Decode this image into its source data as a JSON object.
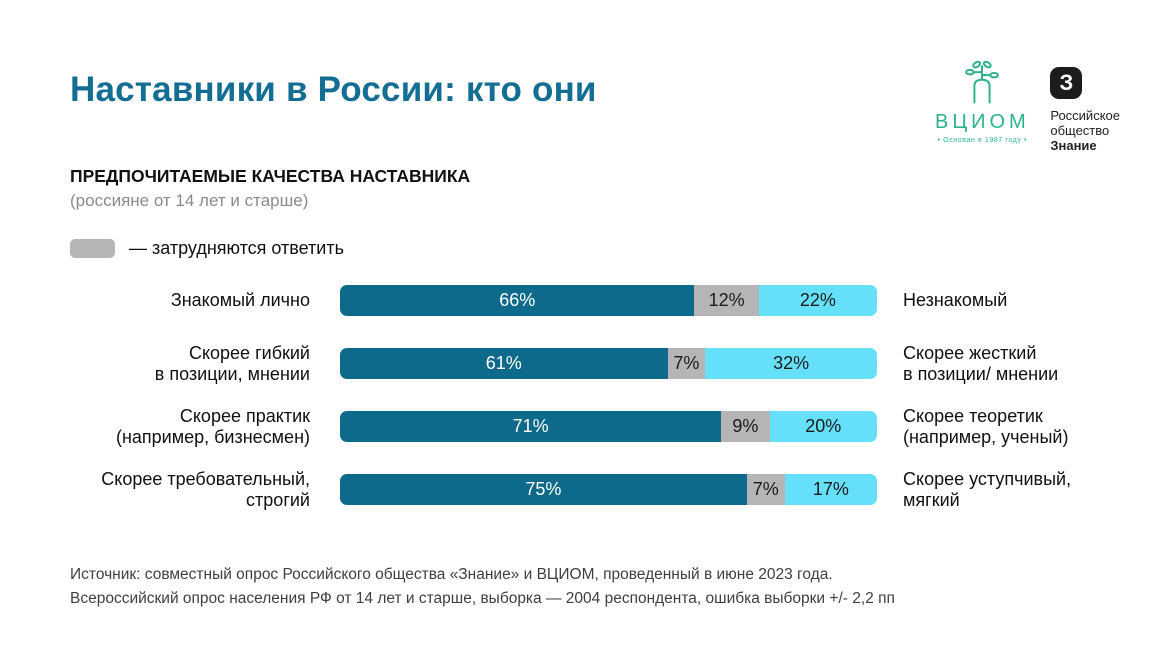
{
  "page": {
    "title": "Наставники в России: кто они"
  },
  "logos": {
    "vciom": {
      "name": "ВЦИОМ",
      "tagline": "• Основан в 1987 году •",
      "brand_color": "#2eb28e"
    },
    "znanie": {
      "glyph": "З",
      "line1": "Российское",
      "line2": "общество",
      "line3": "Знание"
    }
  },
  "section": {
    "heading": "ПРЕДПОЧИТАЕМЫЕ КАЧЕСТВА НАСТАВНИКА",
    "subheading": "(россияне от 14 лет и старше)"
  },
  "legend": {
    "label": "— затрудняются ответить",
    "swatch_color": "#b5b5b7"
  },
  "chart_data": {
    "type": "bar",
    "variant": "horizontal-stacked-opposing-qualities",
    "unit": "%",
    "title": "ПРЕДПОЧИТАЕМЫЕ КАЧЕСТВА НАСТАВНИКА",
    "subtitle": "(россияне от 14 лет и старше)",
    "series_names": [
      "качество слева",
      "затрудняются ответить",
      "качество справа"
    ],
    "colors": {
      "left": "#0d6a8a",
      "neutral": "#b5b5b7",
      "right": "#66e0fa",
      "label_on_left": "#ffffff",
      "label_on_other": "#1a1a1a"
    },
    "rows": [
      {
        "left_label": "Знакомый лично",
        "right_label": "Незнакомый",
        "values": [
          66,
          12,
          22
        ]
      },
      {
        "left_label": "Скорее гибкий\nв позиции, мнении",
        "right_label": "Скорее жесткий\nв позиции/ мнении",
        "values": [
          61,
          7,
          32
        ]
      },
      {
        "left_label": "Скорее практик\n(например, бизнесмен)",
        "right_label": "Скорее теоретик\n(например, ученый)",
        "values": [
          71,
          9,
          20
        ]
      },
      {
        "left_label": "Скорее требовательный,\nстрогий",
        "right_label": "Скорее уступчивый,\nмягкий",
        "values": [
          75,
          7,
          17
        ]
      }
    ]
  },
  "footer": {
    "line1": "Источник: совместный опрос Российского общества «Знание» и ВЦИОМ, проведенный в июне 2023 года.",
    "line2": "Всероссийский опрос населения РФ от 14 лет и старше, выборка — 2004 респондента, ошибка выборки +/- 2,2 пп"
  }
}
